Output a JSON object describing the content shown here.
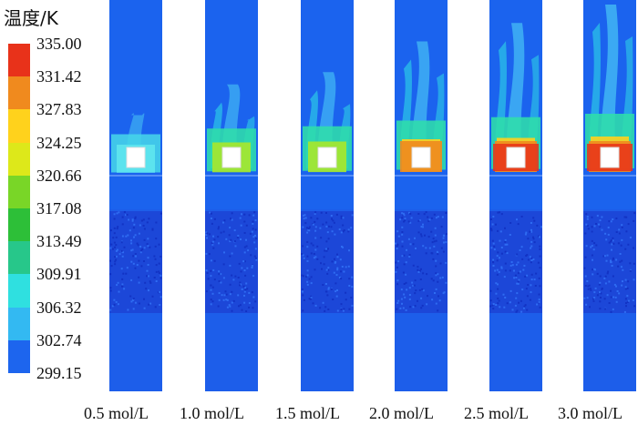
{
  "legend": {
    "title": "温度/K",
    "levels": [
      "335.00",
      "331.42",
      "327.83",
      "324.25",
      "320.66",
      "317.08",
      "313.49",
      "309.91",
      "306.32",
      "302.74",
      "299.15"
    ],
    "colors": [
      "#e8321a",
      "#f08a1e",
      "#ffd21c",
      "#dde81a",
      "#79d627",
      "#2dbf38",
      "#27c78a",
      "#2fe0e0",
      "#33b9f2",
      "#1d65ee",
      "#0b38d6"
    ]
  },
  "panels": [
    {
      "label": "0.5 mol/L",
      "intensity": 0.1
    },
    {
      "label": "1.0 mol/L",
      "intensity": 0.35
    },
    {
      "label": "1.5 mol/L",
      "intensity": 0.45
    },
    {
      "label": "2.0 mol/L",
      "intensity": 0.7
    },
    {
      "label": "2.5 mol/L",
      "intensity": 0.85
    },
    {
      "label": "3.0 mol/L",
      "intensity": 1.0
    }
  ]
}
